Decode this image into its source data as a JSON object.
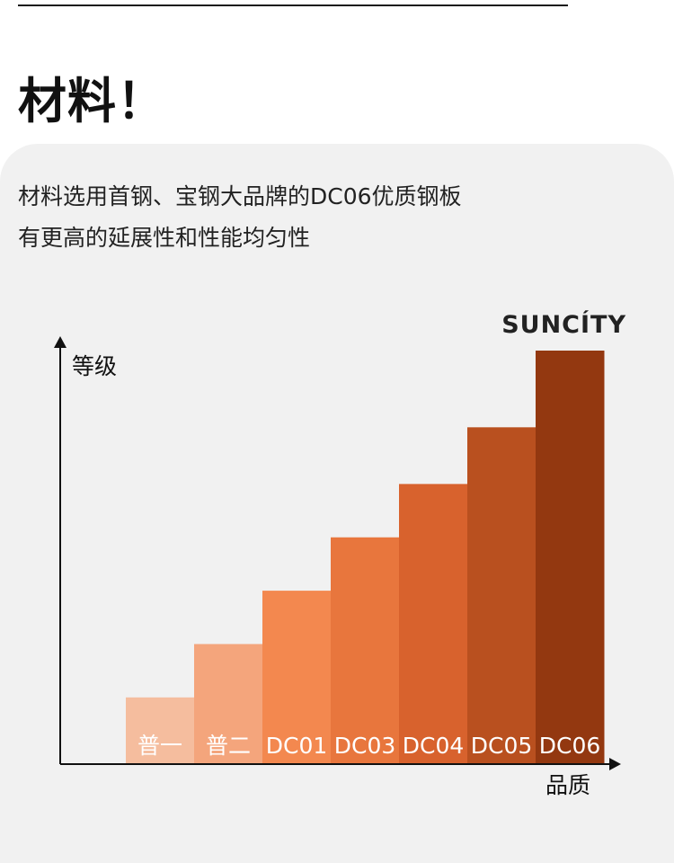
{
  "heading": "材料！",
  "description": {
    "line1": "材料选用首钢、宝钢大品牌的DC06优质钢板",
    "line2": "有更高的延展性和性能均匀性"
  },
  "brand": "SUNCÍTY",
  "colors": {
    "panel": "#f1f1f1",
    "bars": [
      "#f5bd9e",
      "#f4a57c",
      "#f3884f",
      "#e8763d",
      "#d8622d",
      "#b9501f",
      "#933810"
    ],
    "bar_label": "#ffffff",
    "axis": "#111111"
  },
  "chart_data": {
    "type": "bar",
    "categories": [
      "普一",
      "普二",
      "DC01",
      "DC03",
      "DC04",
      "DC05",
      "DC06"
    ],
    "values": [
      1.0,
      1.8,
      2.6,
      3.4,
      4.2,
      5.05,
      6.2
    ],
    "xlabel": "品质",
    "ylabel": "等级",
    "ylim": [
      0,
      6.6
    ],
    "grid": false,
    "legend": "none",
    "annotation": {
      "text": "SUNCÍTY",
      "target": "DC06"
    }
  }
}
